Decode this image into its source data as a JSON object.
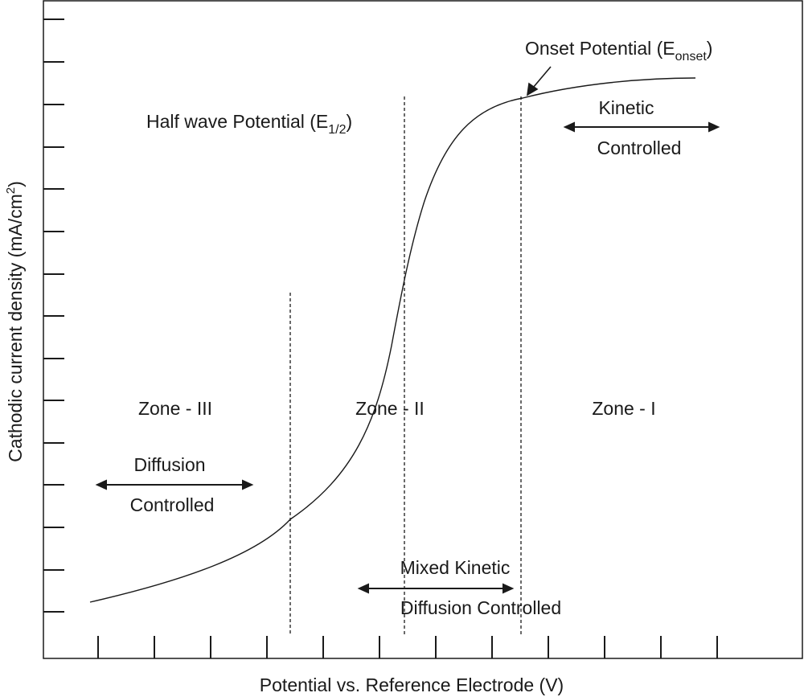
{
  "diagram": {
    "x_axis_label": "Potential vs. Reference Electrode (V)",
    "y_axis_label_main": "Cathodic current density (mA/cm",
    "y_axis_label_sup": "2",
    "y_axis_label_end": ")",
    "onset": {
      "text": "Onset Potential (E",
      "sub": "onset",
      "end": ")"
    },
    "half_wave": {
      "text": "Half wave Potential (E",
      "sub": "1/2",
      "end": ")"
    },
    "zones": [
      "Zone - III",
      "Zone - II",
      "Zone - I"
    ],
    "kinetic": {
      "line1": "Kinetic",
      "line2": "Controlled"
    },
    "diffusion": {
      "line1": "Diffusion",
      "line2": "Controlled"
    },
    "mixed": {
      "line1": "Mixed Kinetic",
      "line2": "Diffusion Controlled"
    },
    "colors": {
      "line": "#1a1a1a",
      "background": "#ffffff"
    }
  }
}
